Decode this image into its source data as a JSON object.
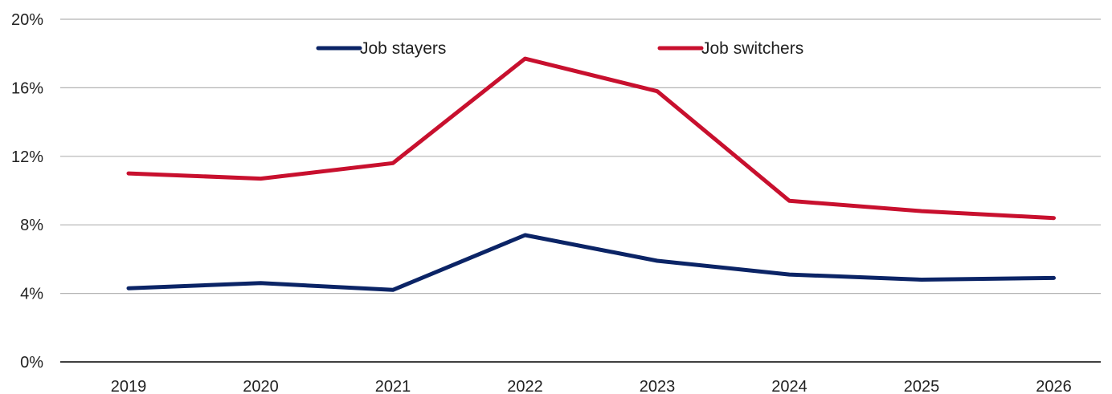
{
  "chart_data": {
    "type": "line",
    "x": [
      "2019",
      "2020",
      "2021",
      "2022",
      "2023",
      "2024",
      "2025",
      "2026"
    ],
    "ylim": [
      0,
      20
    ],
    "yticks": [
      0,
      4,
      8,
      12,
      16,
      20
    ],
    "ytick_labels": [
      "0%",
      "4%",
      "8%",
      "12%",
      "16%",
      "20%"
    ],
    "grid": true,
    "legend_position": "top",
    "series": [
      {
        "name": "Job stayers",
        "color": "#0b2466",
        "values": [
          4.3,
          4.6,
          4.2,
          7.4,
          5.9,
          5.1,
          4.8,
          4.9
        ]
      },
      {
        "name": "Job switchers",
        "color": "#c8102e",
        "values": [
          11.0,
          10.7,
          11.6,
          17.7,
          15.8,
          9.4,
          8.8,
          8.4
        ]
      }
    ]
  }
}
